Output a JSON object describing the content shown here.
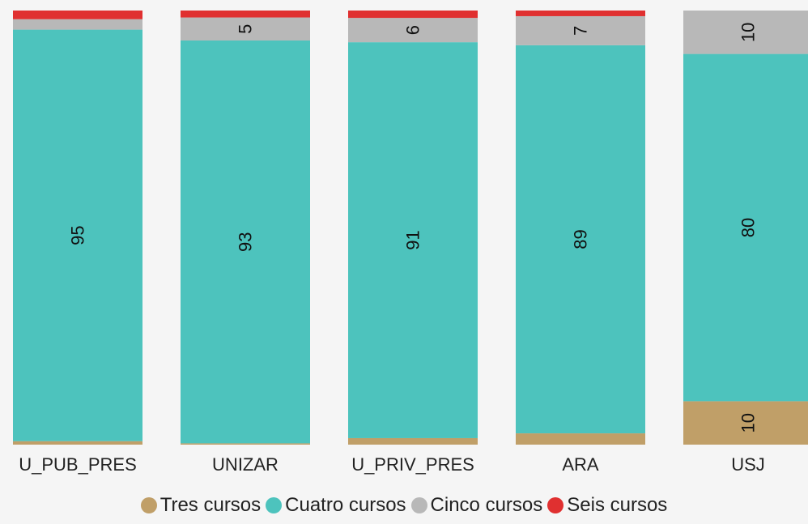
{
  "chart_data": {
    "type": "bar",
    "stacked": true,
    "orientation": "vertical",
    "percent_scale": true,
    "ylim": [
      0,
      100
    ],
    "grid": false,
    "legend_position": "bottom",
    "categories": [
      "U_PUB_PRES",
      "UNIZAR",
      "U_PRIV_PRES",
      "ARA",
      "USJ"
    ],
    "series": [
      {
        "name": "Tres cursos",
        "color": "#c09f68",
        "values": [
          0.8,
          0.3,
          1.5,
          2.6,
          10
        ],
        "labels": [
          "",
          "",
          "",
          "",
          "10"
        ]
      },
      {
        "name": "Cuatro cursos",
        "color": "#4dc3bd",
        "values": [
          94.8,
          92.8,
          91.2,
          89.4,
          80
        ],
        "labels": [
          "95",
          "93",
          "91",
          "89",
          "80"
        ]
      },
      {
        "name": "Cinco cursos",
        "color": "#b8b8b8",
        "values": [
          2.4,
          5.3,
          5.6,
          6.7,
          10
        ],
        "labels": [
          "",
          "5",
          "6",
          "7",
          "10"
        ]
      },
      {
        "name": "Seis cursos",
        "color": "#e03030",
        "values": [
          2.0,
          1.6,
          1.7,
          1.3,
          0
        ],
        "labels": [
          "",
          "",
          "",
          "",
          ""
        ]
      }
    ]
  }
}
